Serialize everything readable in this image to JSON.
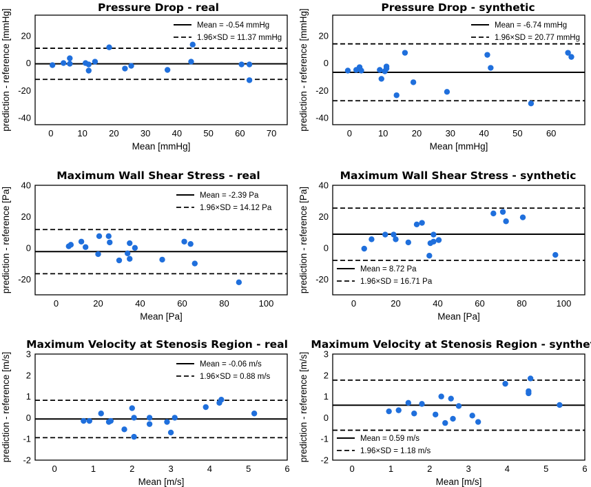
{
  "colors": {
    "point": "#1f6fdc",
    "line": "#000000",
    "background": "#ffffff"
  },
  "chart_data": [
    {
      "type": "scatter",
      "title": "Pressure Drop - real",
      "xlabel": "Mean [mmHg]",
      "ylabel": "prediction - reference [mmHg]",
      "xlim": [
        -5,
        75
      ],
      "ylim": [
        -45,
        35
      ],
      "xticks": [
        0,
        10,
        20,
        30,
        40,
        50,
        60,
        70
      ],
      "yticks": [
        -40,
        -20,
        0,
        20
      ],
      "mean": -0.54,
      "loa": 11.37,
      "legend_position": "top-right",
      "legend": [
        "Mean = -0.54 mmHg",
        "1.96×SD = 11.37 mmHg"
      ],
      "points": [
        [
          0.5,
          -1.5
        ],
        [
          4,
          0
        ],
        [
          6,
          3.5
        ],
        [
          6,
          -0.5
        ],
        [
          11,
          0
        ],
        [
          12,
          -1
        ],
        [
          12,
          -5.5
        ],
        [
          14,
          1
        ],
        [
          18.5,
          11.5
        ],
        [
          23.5,
          -4
        ],
        [
          25.5,
          -2
        ],
        [
          37,
          -5
        ],
        [
          44.5,
          1
        ],
        [
          45,
          13.5
        ],
        [
          60.5,
          -1
        ],
        [
          63,
          -1
        ],
        [
          63,
          -12.5
        ]
      ]
    },
    {
      "type": "scatter",
      "title": "Pressure Drop - synthetic",
      "xlabel": "Mean [mmHg]",
      "ylabel": "prediction - reference [mmHg]",
      "xlim": [
        -5,
        70
      ],
      "ylim": [
        -45,
        35
      ],
      "xticks": [
        0,
        10,
        20,
        30,
        40,
        50,
        60
      ],
      "yticks": [
        -40,
        -20,
        0,
        20
      ],
      "mean": -6.74,
      "loa": 20.77,
      "legend_position": "top-right",
      "legend": [
        "Mean = -6.74 mmHg",
        "1.96×SD = 20.77 mmHg"
      ],
      "points": [
        [
          -0.5,
          -5.5
        ],
        [
          2,
          -5
        ],
        [
          3,
          -3
        ],
        [
          3.5,
          -5.5
        ],
        [
          9,
          -5
        ],
        [
          9.5,
          -11.5
        ],
        [
          10.5,
          -6
        ],
        [
          11,
          -2.5
        ],
        [
          11,
          -4
        ],
        [
          14,
          -23.5
        ],
        [
          16.5,
          7.5
        ],
        [
          19,
          -14
        ],
        [
          29,
          -21
        ],
        [
          41,
          6
        ],
        [
          42,
          -3.5
        ],
        [
          54,
          -29.5
        ],
        [
          65,
          7.5
        ],
        [
          66,
          4.5
        ]
      ]
    },
    {
      "type": "scatter",
      "title": "Maximum Wall Shear Stress - real",
      "xlabel": "Mean [Pa]",
      "ylabel": "prediction - reference [Pa]",
      "xlim": [
        -10,
        110
      ],
      "ylim": [
        -30,
        40
      ],
      "xticks": [
        0,
        20,
        40,
        60,
        80,
        100
      ],
      "yticks": [
        -20,
        0,
        20,
        40
      ],
      "mean": -2.39,
      "loa": 14.12,
      "legend_position": "top-right",
      "legend": [
        "Mean = -2.39 Pa",
        "1.96×SD = 14.12 Pa"
      ],
      "points": [
        [
          6,
          1
        ],
        [
          7,
          2
        ],
        [
          12,
          4
        ],
        [
          14,
          0.5
        ],
        [
          20,
          -4
        ],
        [
          20.5,
          7.5
        ],
        [
          25,
          7.5
        ],
        [
          25.5,
          3.5
        ],
        [
          30,
          -8
        ],
        [
          34,
          -3.5
        ],
        [
          35,
          3
        ],
        [
          35,
          -7
        ],
        [
          37.5,
          0
        ],
        [
          50.5,
          -7.5
        ],
        [
          61,
          4
        ],
        [
          64,
          2.5
        ],
        [
          66,
          -10
        ],
        [
          87,
          -22
        ]
      ]
    },
    {
      "type": "scatter",
      "title": "Maximum Wall Shear Stress - synthetic",
      "xlabel": "Mean [Pa]",
      "ylabel": "prediction - reference [Pa]",
      "xlim": [
        -10,
        110
      ],
      "ylim": [
        -30,
        40
      ],
      "xticks": [
        0,
        20,
        40,
        60,
        80,
        100
      ],
      "yticks": [
        -20,
        0,
        20,
        40
      ],
      "mean": 8.72,
      "loa": 16.71,
      "legend_position": "bottom-left",
      "legend": [
        "Mean = 8.72 Pa",
        "1.96×SD = 16.71 Pa"
      ],
      "points": [
        [
          5,
          -0.5
        ],
        [
          8.5,
          5.5
        ],
        [
          15,
          8.5
        ],
        [
          19,
          8.5
        ],
        [
          20,
          5.5
        ],
        [
          26,
          3.5
        ],
        [
          30,
          15
        ],
        [
          32.5,
          16
        ],
        [
          36,
          -5
        ],
        [
          36.5,
          3
        ],
        [
          38,
          4
        ],
        [
          38,
          8.5
        ],
        [
          40.5,
          5
        ],
        [
          66.5,
          22
        ],
        [
          71,
          23
        ],
        [
          72.5,
          17
        ],
        [
          80.5,
          19.5
        ],
        [
          96,
          -4.5
        ]
      ]
    },
    {
      "type": "scatter",
      "title": "Maximum Velocity at Stenosis Region - real",
      "xlabel": "Mean [m/s]",
      "ylabel": "prediction - reference [m/s]",
      "xlim": [
        -0.5,
        6
      ],
      "ylim": [
        -2,
        3
      ],
      "xticks": [
        0,
        1,
        2,
        3,
        4,
        5,
        6
      ],
      "yticks": [
        -2,
        -1,
        0,
        1,
        2,
        3
      ],
      "mean": -0.06,
      "loa": 0.88,
      "legend_position": "top-right",
      "legend": [
        "Mean = -0.06 m/s",
        "1.96×SD = 0.88 m/s"
      ],
      "points": [
        [
          0.75,
          -0.15
        ],
        [
          0.9,
          -0.15
        ],
        [
          1.2,
          0.2
        ],
        [
          1.4,
          -0.2
        ],
        [
          1.45,
          -0.15
        ],
        [
          1.8,
          -0.55
        ],
        [
          2.0,
          0.45
        ],
        [
          2.05,
          -0.9
        ],
        [
          2.05,
          0.0
        ],
        [
          2.45,
          -0.3
        ],
        [
          2.45,
          0.0
        ],
        [
          2.9,
          -0.2
        ],
        [
          3.0,
          -0.7
        ],
        [
          3.1,
          0.0
        ],
        [
          3.9,
          0.5
        ],
        [
          4.25,
          0.7
        ],
        [
          4.3,
          0.85
        ],
        [
          5.15,
          0.2
        ]
      ]
    },
    {
      "type": "scatter",
      "title": "Maximum Velocity at Stenosis Region - synthetic",
      "xlabel": "Mean [m/s]",
      "ylabel": "prediction - reference [m/s]",
      "xlim": [
        -0.5,
        6
      ],
      "ylim": [
        -2,
        3
      ],
      "xticks": [
        0,
        1,
        2,
        3,
        4,
        5,
        6
      ],
      "yticks": [
        -2,
        -1,
        0,
        1,
        2,
        3
      ],
      "mean": 0.59,
      "loa": 1.18,
      "legend_position": "bottom-left",
      "legend": [
        "Mean = 0.59 m/s",
        "1.96×SD = 1.18 m/s"
      ],
      "points": [
        [
          0.95,
          0.3
        ],
        [
          1.2,
          0.35
        ],
        [
          1.45,
          0.7
        ],
        [
          1.6,
          0.2
        ],
        [
          1.8,
          0.65
        ],
        [
          2.15,
          0.15
        ],
        [
          2.3,
          1.0
        ],
        [
          2.4,
          -0.25
        ],
        [
          2.55,
          0.9
        ],
        [
          2.6,
          -0.05
        ],
        [
          2.75,
          0.55
        ],
        [
          3.1,
          0.1
        ],
        [
          3.25,
          -0.2
        ],
        [
          3.95,
          1.6
        ],
        [
          4.55,
          1.15
        ],
        [
          4.55,
          1.25
        ],
        [
          4.6,
          1.85
        ],
        [
          5.35,
          0.6
        ]
      ]
    }
  ]
}
